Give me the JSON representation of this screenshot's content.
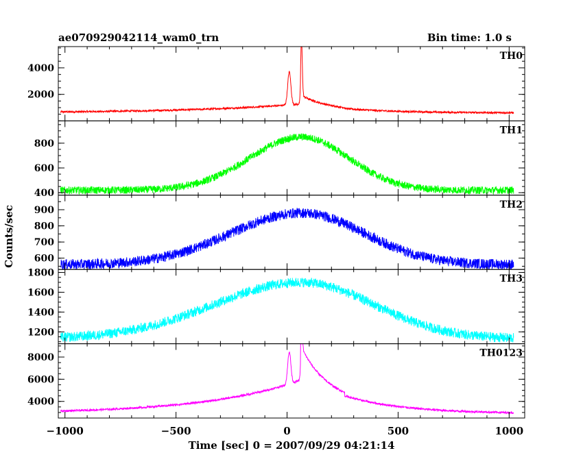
{
  "chart_data": {
    "type": "line",
    "title_left": "ae070929042114_wam0_trn",
    "title_right": "Bin time: 1.0 s",
    "xlabel": "Time [sec] 0 = 2007/09/29 04:21:14",
    "ylabel": "Counts/sec",
    "xlim": [
      -1030,
      1070
    ],
    "x_ticks": [
      -1000,
      -500,
      0,
      500,
      1000
    ],
    "x_tick_labels": [
      "−1000",
      "−500",
      "0",
      "500",
      "1000"
    ],
    "x_range": [
      -1020,
      1020
    ],
    "panels": [
      {
        "name": "TH0",
        "color": "#ff0000",
        "ylim": [
          0,
          5600
        ],
        "yticks": [
          2000,
          4000
        ],
        "minor_step": 500,
        "base": 600,
        "amp_peak": 750,
        "rise_scale": 500,
        "fall_scale": 240,
        "noise": 70,
        "spikes": [
          {
            "x": 10,
            "amp": 2500,
            "w": 10
          },
          {
            "x": 65,
            "amp": 4300,
            "w": 5
          }
        ]
      },
      {
        "name": "TH1",
        "color": "#00ff00",
        "ylim": [
          380,
          980
        ],
        "yticks": [
          400,
          600,
          800
        ],
        "minor_step": 50,
        "base": 420,
        "amp_peak": 430,
        "rise_scale": 330,
        "fall_scale": 300,
        "noise": 30,
        "spikes": []
      },
      {
        "name": "TH2",
        "color": "#0000ff",
        "ylim": [
          530,
          990
        ],
        "yticks": [
          600,
          700,
          800,
          900
        ],
        "minor_step": 50,
        "base": 560,
        "amp_peak": 320,
        "rise_scale": 450,
        "fall_scale": 400,
        "noise": 32,
        "spikes": []
      },
      {
        "name": "TH3",
        "color": "#00ffff",
        "ylim": [
          1080,
          1830
        ],
        "yticks": [
          1200,
          1400,
          1600,
          1800
        ],
        "minor_step": 50,
        "base": 1130,
        "amp_peak": 570,
        "rise_scale": 560,
        "fall_scale": 460,
        "noise": 50,
        "spikes": []
      },
      {
        "name": "TH0123",
        "color": "#ff00ff",
        "ylim": [
          2500,
          9200
        ],
        "yticks": [
          4000,
          6000,
          8000
        ],
        "minor_step": 500,
        "base": 2900,
        "amp_peak": 3400,
        "rise_scale": 420,
        "fall_scale": 260,
        "noise": 90,
        "spikes": [
          {
            "x": 10,
            "amp": 2900,
            "w": 10
          },
          {
            "x": 65,
            "amp": 3700,
            "w": 5
          }
        ]
      }
    ]
  }
}
